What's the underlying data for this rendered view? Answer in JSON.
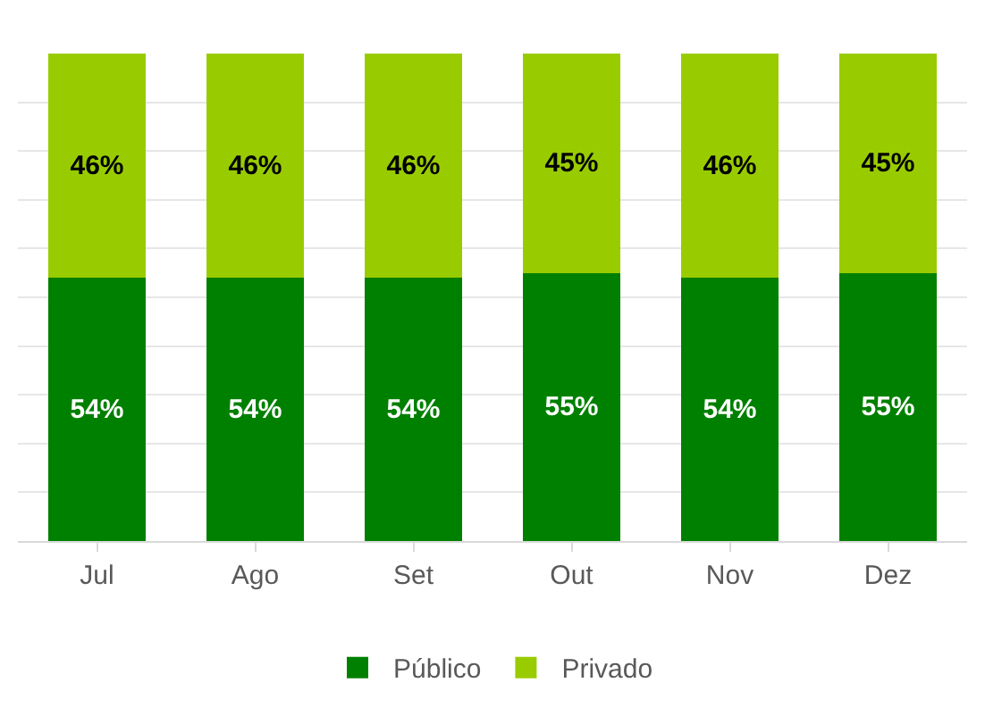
{
  "chart_data": {
    "type": "bar",
    "stacked": true,
    "categories": [
      "Jul",
      "Ago",
      "Set",
      "Out",
      "Nov",
      "Dez"
    ],
    "series": [
      {
        "name": "Público",
        "color": "#008000",
        "values": [
          54,
          54,
          54,
          55,
          54,
          55
        ],
        "value_labels": [
          "54%",
          "54%",
          "54%",
          "55%",
          "54%",
          "55%"
        ]
      },
      {
        "name": "Privado",
        "color": "#99cc00",
        "values": [
          46,
          46,
          46,
          45,
          46,
          45
        ],
        "value_labels": [
          "46%",
          "46%",
          "46%",
          "45%",
          "46%",
          "45%"
        ]
      }
    ],
    "ylim": [
      0,
      100
    ],
    "yticks": [
      {
        "value": 0,
        "label": null
      },
      {
        "value": 10,
        "label": null
      },
      {
        "value": 20,
        "label": null
      },
      {
        "value": 30,
        "label": null
      },
      {
        "value": 40,
        "label": null
      },
      {
        "value": 50,
        "label": null
      },
      {
        "value": 60,
        "label": null
      },
      {
        "value": 70,
        "label": null
      },
      {
        "value": 80,
        "label": null
      },
      {
        "value": 90,
        "label": null
      }
    ],
    "tick_labels": "x",
    "grid": "y",
    "legend": "bottom"
  }
}
